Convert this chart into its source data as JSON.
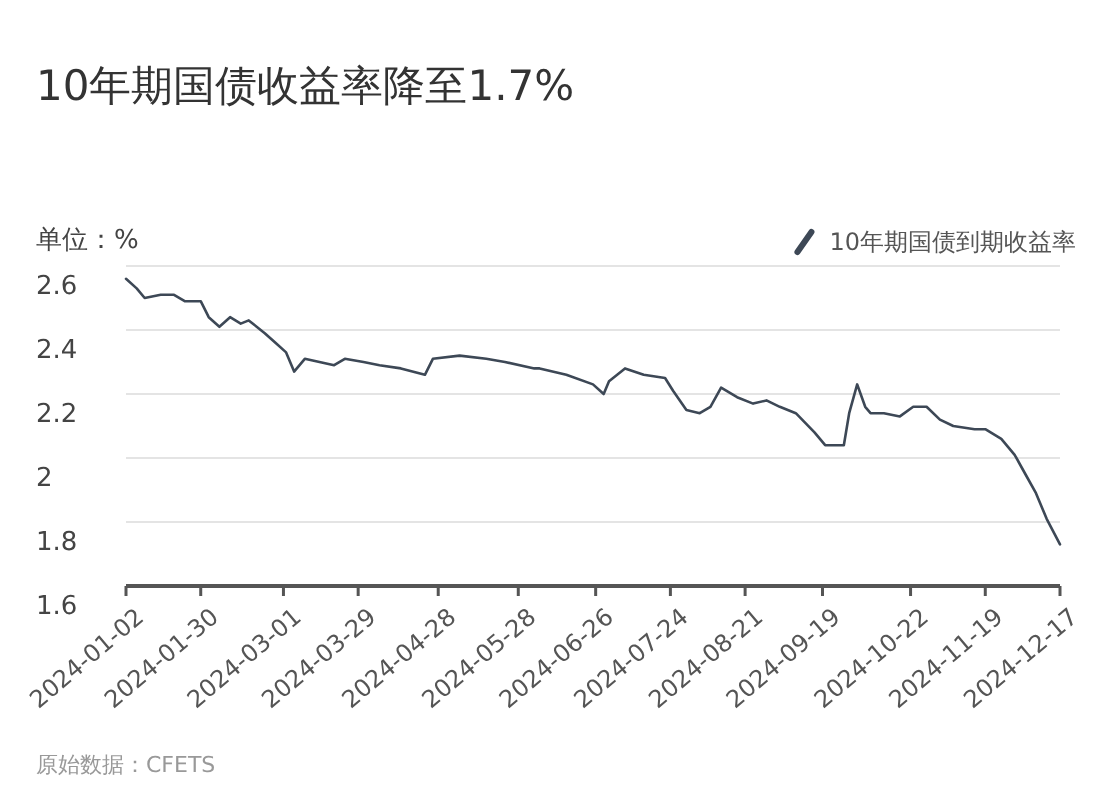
{
  "chart_data": {
    "type": "line",
    "title": "10年期国债收益率降至1.7%",
    "ylabel": "单位：%",
    "annotations": [
      "原始数据：CFETS"
    ],
    "x": [
      "2024-01-02",
      "2024-01-06",
      "2024-01-09",
      "2024-01-15",
      "2024-01-20",
      "2024-01-24",
      "2024-01-30",
      "2024-02-02",
      "2024-02-06",
      "2024-02-10",
      "2024-02-14",
      "2024-02-17",
      "2024-02-23",
      "2024-02-27",
      "2024-03-02",
      "2024-03-05",
      "2024-03-09",
      "2024-03-20",
      "2024-03-24",
      "2024-03-31",
      "2024-04-06",
      "2024-04-14",
      "2024-04-23",
      "2024-04-26",
      "2024-05-06",
      "2024-05-16",
      "2024-05-23",
      "2024-06-03",
      "2024-06-05",
      "2024-06-15",
      "2024-06-25",
      "2024-06-29",
      "2024-07-01",
      "2024-07-07",
      "2024-07-14",
      "2024-07-22",
      "2024-07-25",
      "2024-07-30",
      "2024-08-04",
      "2024-08-08",
      "2024-08-12",
      "2024-08-18",
      "2024-08-24",
      "2024-08-29",
      "2024-09-03",
      "2024-09-09",
      "2024-09-16",
      "2024-09-20",
      "2024-09-27",
      "2024-09-29",
      "2024-10-02",
      "2024-10-05",
      "2024-10-07",
      "2024-10-12",
      "2024-10-18",
      "2024-10-23",
      "2024-10-28",
      "2024-11-02",
      "2024-11-07",
      "2024-11-15",
      "2024-11-19",
      "2024-11-25",
      "2024-11-30",
      "2024-12-04",
      "2024-12-08",
      "2024-12-12",
      "2024-12-17"
    ],
    "series": [
      {
        "name": "10年期国债到期收益率",
        "color": "#3d4856",
        "values": [
          2.56,
          2.53,
          2.5,
          2.51,
          2.51,
          2.49,
          2.49,
          2.44,
          2.41,
          2.44,
          2.42,
          2.43,
          2.39,
          2.36,
          2.33,
          2.27,
          2.31,
          2.29,
          2.31,
          2.3,
          2.29,
          2.28,
          2.26,
          2.31,
          2.32,
          2.31,
          2.3,
          2.28,
          2.28,
          2.26,
          2.23,
          2.2,
          2.24,
          2.28,
          2.26,
          2.25,
          2.21,
          2.15,
          2.14,
          2.16,
          2.22,
          2.19,
          2.17,
          2.18,
          2.16,
          2.14,
          2.08,
          2.04,
          2.04,
          2.14,
          2.23,
          2.16,
          2.14,
          2.14,
          2.13,
          2.16,
          2.16,
          2.12,
          2.1,
          2.09,
          2.09,
          2.06,
          2.01,
          1.95,
          1.89,
          1.81,
          1.73
        ]
      }
    ],
    "xlim": [
      "2024-01-02",
      "2024-12-17"
    ],
    "xticks": [
      {
        "value": "2024-01-02",
        "label": "2024-01-02"
      },
      {
        "value": "2024-01-30",
        "label": "2024-01-30"
      },
      {
        "value": "2024-03-01",
        "label": "2024-03-01"
      },
      {
        "value": "2024-03-29",
        "label": "2024-03-29"
      },
      {
        "value": "2024-04-28",
        "label": "2024-04-28"
      },
      {
        "value": "2024-05-28",
        "label": "2024-05-28"
      },
      {
        "value": "2024-06-26",
        "label": "2024-06-26"
      },
      {
        "value": "2024-07-24",
        "label": "2024-07-24"
      },
      {
        "value": "2024-08-21",
        "label": "2024-08-21"
      },
      {
        "value": "2024-09-19",
        "label": "2024-09-19"
      },
      {
        "value": "2024-10-22",
        "label": "2024-10-22"
      },
      {
        "value": "2024-11-19",
        "label": "2024-11-19"
      },
      {
        "value": "2024-12-17",
        "label": "2024-12-17"
      }
    ],
    "ylim": [
      1.6,
      2.6
    ],
    "yticks": [
      1.6,
      1.8,
      2,
      2.2,
      2.4,
      2.6
    ],
    "grid": "y",
    "legend": "top right",
    "marker": "none",
    "line_style": "solid"
  }
}
